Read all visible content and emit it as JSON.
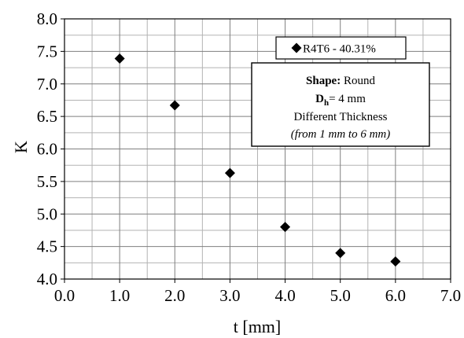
{
  "chart_data": {
    "type": "scatter",
    "xlabel": "t [mm]",
    "ylabel": "K",
    "xlim": [
      0.0,
      7.0
    ],
    "ylim": [
      4.0,
      8.0
    ],
    "x_ticks": [
      "0.0",
      "1.0",
      "2.0",
      "3.0",
      "4.0",
      "5.0",
      "6.0",
      "7.0"
    ],
    "y_ticks": [
      "4.0",
      "4.5",
      "5.0",
      "5.5",
      "6.0",
      "6.5",
      "7.0",
      "7.5",
      "8.0"
    ],
    "grid": "major and minor",
    "legend_position": "top-right",
    "series": [
      {
        "name": "R4T6 - 40.31%",
        "marker": "diamond",
        "color": "#000000",
        "points": [
          {
            "x": 1.0,
            "y": 7.39
          },
          {
            "x": 2.0,
            "y": 6.67
          },
          {
            "x": 3.0,
            "y": 5.63
          },
          {
            "x": 4.0,
            "y": 4.8
          },
          {
            "x": 5.0,
            "y": 4.4
          },
          {
            "x": 6.0,
            "y": 4.27
          }
        ]
      }
    ],
    "annotation": {
      "shape_label": "Shape:",
      "shape_value": " Round",
      "dh_main": "D",
      "dh_sub": "h",
      "dh_value": "= 4 mm",
      "line3": "Different Thickness",
      "line4": "(from 1  mm to 6 mm)"
    }
  }
}
